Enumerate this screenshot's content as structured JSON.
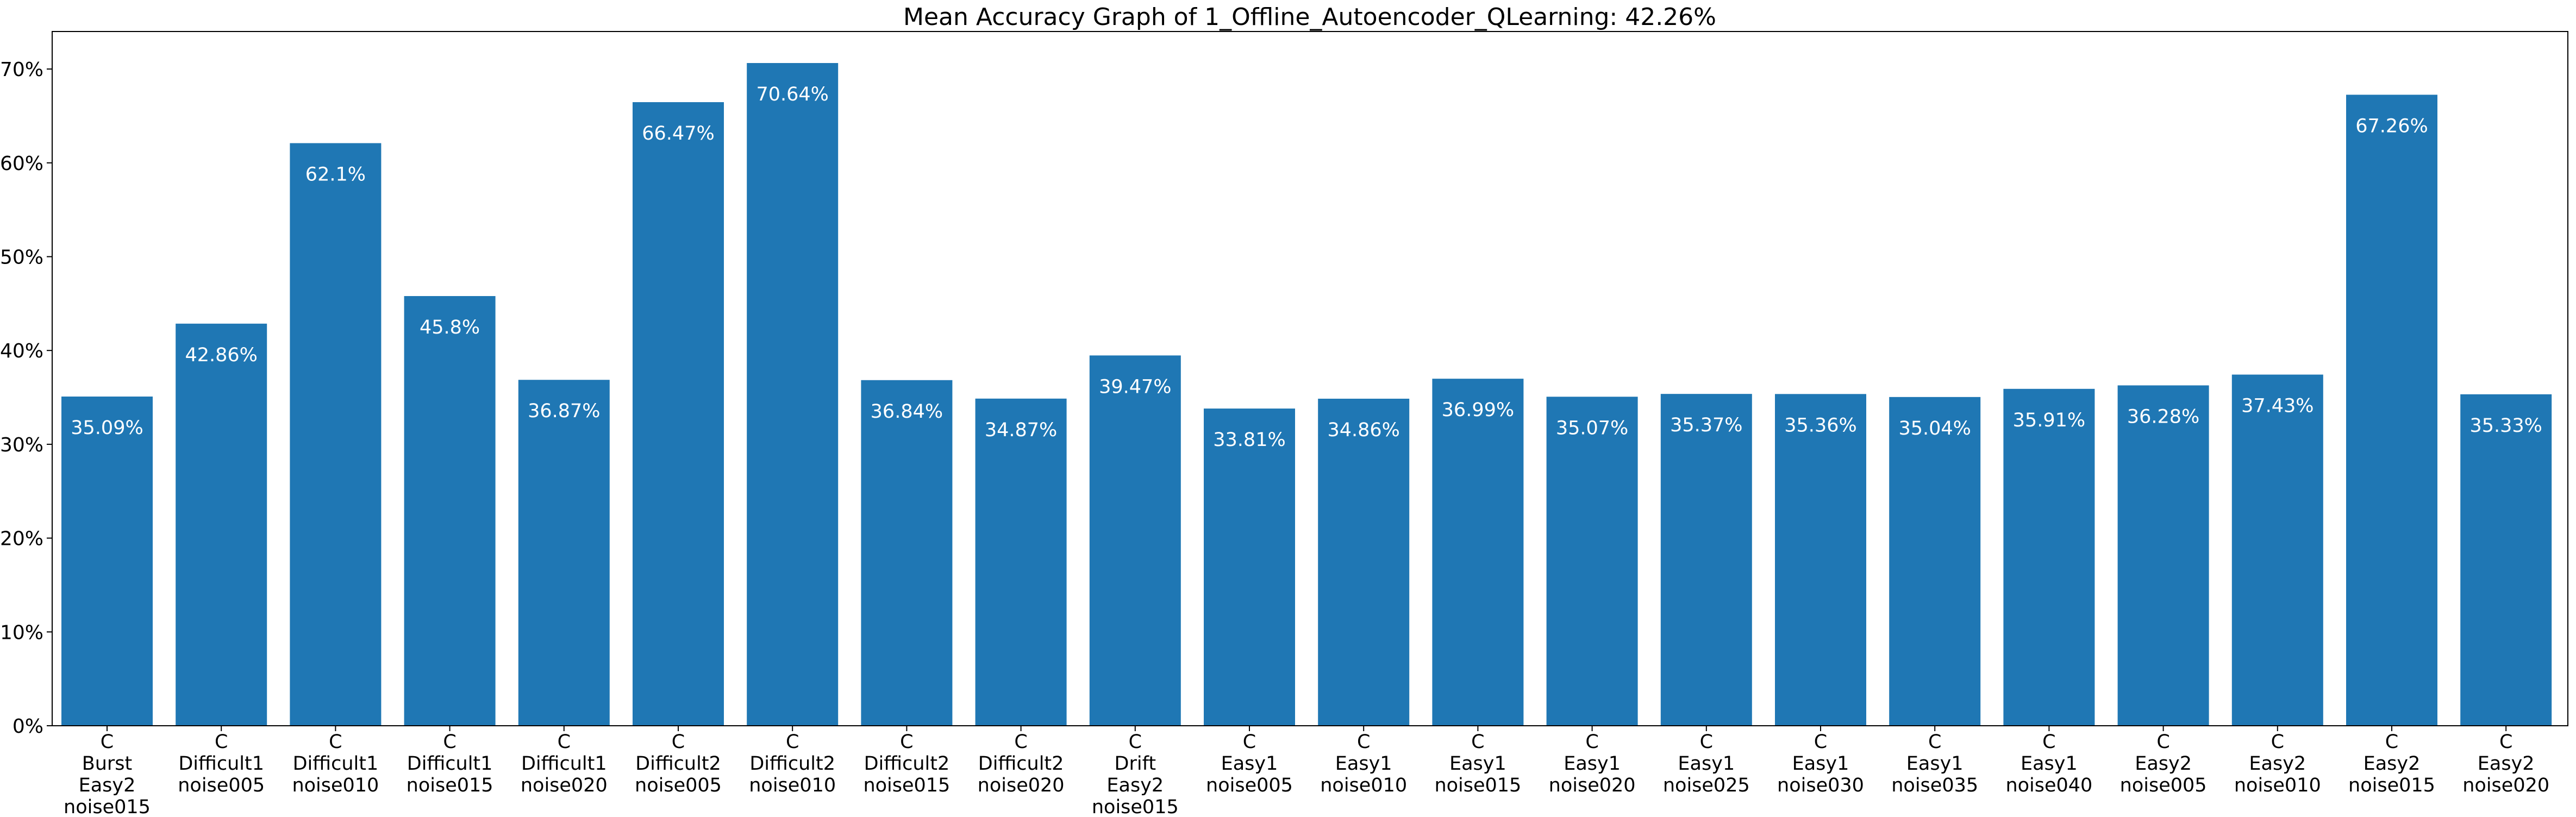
{
  "chart_data": {
    "type": "bar",
    "title": "Mean Accuracy Graph of 1_Offline_Autoencoder_QLearning: 42.26%",
    "xlabel": "",
    "ylabel": "",
    "ylim": [
      0,
      74
    ],
    "y_ticks": [
      0,
      10,
      20,
      30,
      40,
      50,
      60,
      70
    ],
    "y_tick_labels": [
      "0%",
      "10%",
      "20%",
      "30%",
      "40%",
      "50%",
      "60%",
      "70%"
    ],
    "grid": false,
    "bar_color": "#1f77b4",
    "label_color": "#ffffff",
    "categories": [
      [
        "C",
        "Burst",
        "Easy2",
        "noise015"
      ],
      [
        "C",
        "Difficult1",
        "noise005"
      ],
      [
        "C",
        "Difficult1",
        "noise010"
      ],
      [
        "C",
        "Difficult1",
        "noise015"
      ],
      [
        "C",
        "Difficult1",
        "noise020"
      ],
      [
        "C",
        "Difficult2",
        "noise005"
      ],
      [
        "C",
        "Difficult2",
        "noise010"
      ],
      [
        "C",
        "Difficult2",
        "noise015"
      ],
      [
        "C",
        "Difficult2",
        "noise020"
      ],
      [
        "C",
        "Drift",
        "Easy2",
        "noise015"
      ],
      [
        "C",
        "Easy1",
        "noise005"
      ],
      [
        "C",
        "Easy1",
        "noise010"
      ],
      [
        "C",
        "Easy1",
        "noise015"
      ],
      [
        "C",
        "Easy1",
        "noise020"
      ],
      [
        "C",
        "Easy1",
        "noise025"
      ],
      [
        "C",
        "Easy1",
        "noise030"
      ],
      [
        "C",
        "Easy1",
        "noise035"
      ],
      [
        "C",
        "Easy1",
        "noise040"
      ],
      [
        "C",
        "Easy2",
        "noise005"
      ],
      [
        "C",
        "Easy2",
        "noise010"
      ],
      [
        "C",
        "Easy2",
        "noise015"
      ],
      [
        "C",
        "Easy2",
        "noise020"
      ]
    ],
    "values": [
      35.09,
      42.86,
      62.1,
      45.8,
      36.87,
      66.47,
      70.64,
      36.84,
      34.87,
      39.47,
      33.81,
      34.86,
      36.99,
      35.07,
      35.37,
      35.36,
      35.04,
      35.91,
      36.28,
      37.43,
      67.26,
      35.33
    ],
    "value_labels": [
      "35.09%",
      "42.86%",
      "62.1%",
      "45.8%",
      "36.87%",
      "66.47%",
      "70.64%",
      "36.84%",
      "34.87%",
      "39.47%",
      "33.81%",
      "34.86%",
      "36.99%",
      "35.07%",
      "35.37%",
      "35.36%",
      "35.04%",
      "35.91%",
      "36.28%",
      "37.43%",
      "67.26%",
      "35.33%"
    ]
  }
}
